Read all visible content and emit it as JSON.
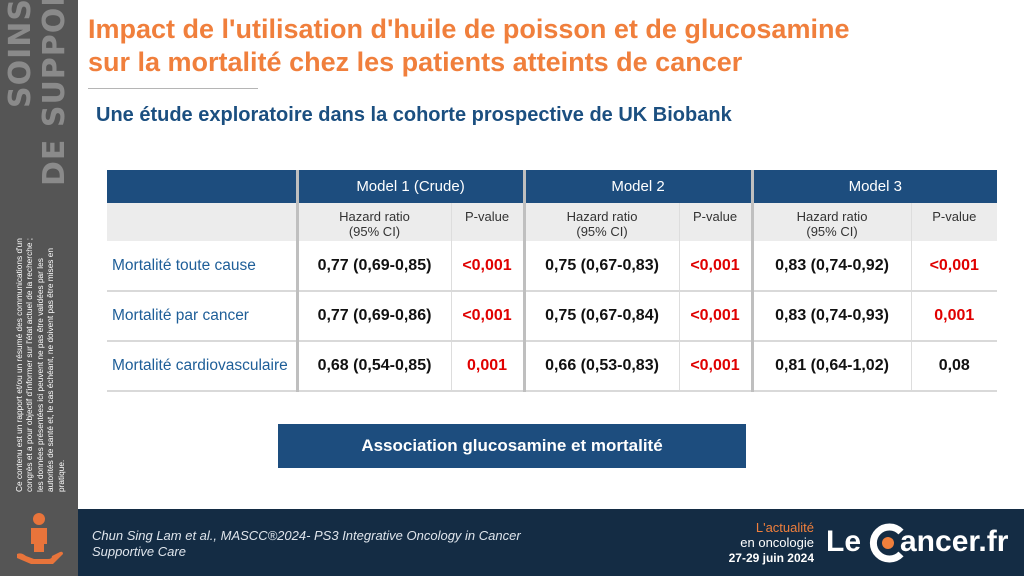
{
  "sidebar": {
    "word1": "SOINS",
    "word2": "DE SUPPORT",
    "disclaimer": "Ce contenu est un rapport et/ou un résumé des communications d'un congrès et a pour objectif d'informer sur l'état actuel de la recherche ; les données présentées ici peuvent ne pas être validées par les autorités de santé et, le cas échéant, ne doivent pas être mises en pratique.",
    "icon": "person-hand-icon"
  },
  "header": {
    "title_line1": "Impact de l'utilisation d'huile de poisson et de glucosamine",
    "title_line2": "sur la mortalité chez les patients atteints de cancer",
    "subtitle": "Une étude exploratoire dans la cohorte prospective de UK Biobank"
  },
  "table": {
    "models": [
      "Model 1 (Crude)",
      "Model 2",
      "Model 3"
    ],
    "hr_label_line1": "Hazard ratio",
    "hr_label_line2": "(95% CI)",
    "pvalue_label": "P-value",
    "rows": [
      {
        "label": "Mortalité toute cause",
        "cells": [
          {
            "hr": "0,77 (0,69-0,85)",
            "p": "<0,001",
            "sig": true
          },
          {
            "hr": "0,75 (0,67-0,83)",
            "p": "<0,001",
            "sig": true
          },
          {
            "hr": "0,83 (0,74-0,92)",
            "p": "<0,001",
            "sig": true
          }
        ]
      },
      {
        "label": "Mortalité par cancer",
        "cells": [
          {
            "hr": "0,77 (0,69-0,86)",
            "p": "<0,001",
            "sig": true
          },
          {
            "hr": "0,75 (0,67-0,84)",
            "p": "<0,001",
            "sig": true
          },
          {
            "hr": "0,83 (0,74-0,93)",
            "p": "0,001",
            "sig": true
          }
        ]
      },
      {
        "label": "Mortalité cardiovasculaire",
        "cells": [
          {
            "hr": "0,68 (0,54-0,85)",
            "p": "0,001",
            "sig": true
          },
          {
            "hr": "0,66 (0,53-0,83)",
            "p": "<0,001",
            "sig": true
          },
          {
            "hr": "0,81 (0,64-1,02)",
            "p": "0,08",
            "sig": false
          }
        ]
      }
    ]
  },
  "banner": {
    "label": "Association glucosamine et mortalité"
  },
  "footer": {
    "citation": "Chun Sing Lam et al., MASCC®2024- PS3 Integrative Oncology in Cancer Supportive Care",
    "event_line1": "L'actualité",
    "event_line2": "en oncologie",
    "event_dates": "27-29 juin 2024",
    "logo_le": "Le",
    "logo_rest": "ancer.fr"
  },
  "colors": {
    "title": "#f07f3c",
    "subtitle": "#1b4f80",
    "header_blue": "#1d4d7e",
    "significant_p": "#e00000",
    "footer_bg": "#142c44",
    "sidebar_bg": "#555555",
    "icon_orange": "#e8743b"
  }
}
